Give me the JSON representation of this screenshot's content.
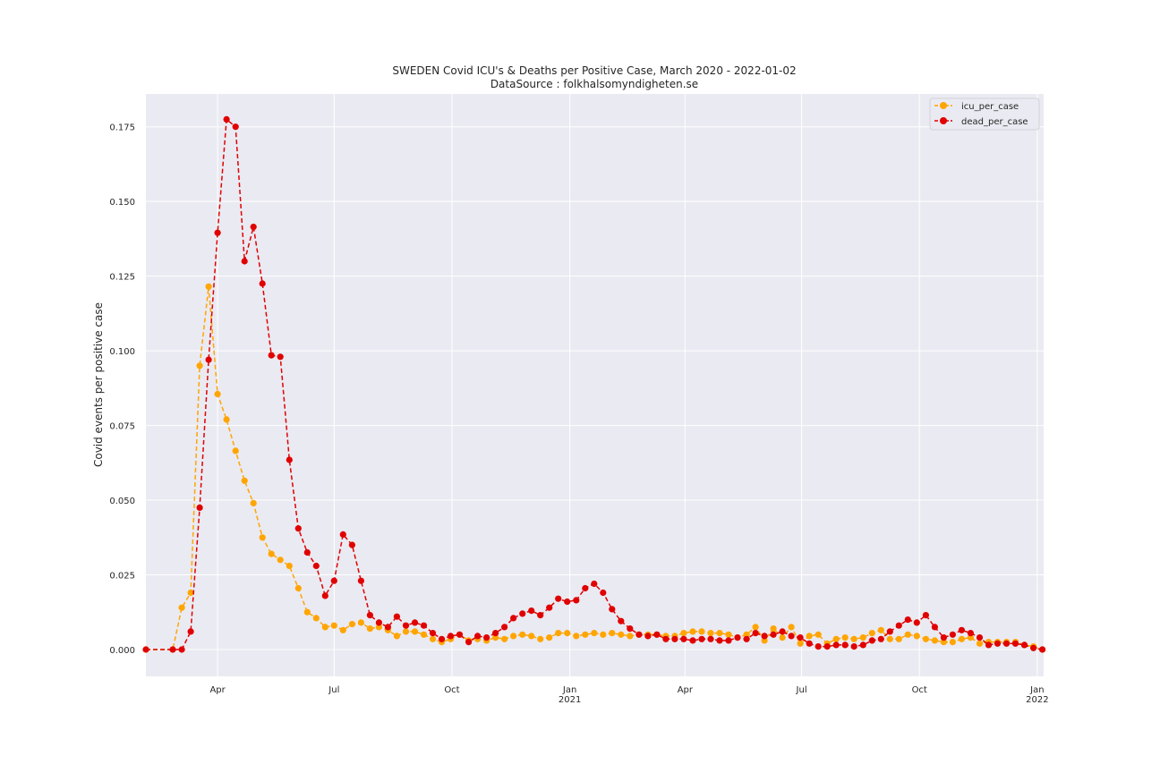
{
  "chart_data": {
    "type": "line",
    "title": "SWEDEN Covid ICU's & Deaths per Positive Case, March 2020 - 2022-01-02",
    "subtitle": "DataSource : folkhalsomyndigheten.se",
    "xlabel": "",
    "ylabel": "Covid events per positive case",
    "xlim": [
      "2020-02-05",
      "2022-01-06"
    ],
    "ylim": [
      -0.009,
      0.186
    ],
    "grid": true,
    "legend": "top-right",
    "x_ticks": [
      {
        "date": "2020-04-01",
        "label": "Apr",
        "sub": ""
      },
      {
        "date": "2020-07-01",
        "label": "Jul",
        "sub": ""
      },
      {
        "date": "2020-10-01",
        "label": "Oct",
        "sub": ""
      },
      {
        "date": "2021-01-01",
        "label": "Jan",
        "sub": "2021"
      },
      {
        "date": "2021-04-01",
        "label": "Apr",
        "sub": ""
      },
      {
        "date": "2021-07-01",
        "label": "Jul",
        "sub": ""
      },
      {
        "date": "2021-10-01",
        "label": "Oct",
        "sub": ""
      },
      {
        "date": "2022-01-01",
        "label": "Jan",
        "sub": "2022"
      }
    ],
    "y_ticks": [
      "0.000",
      "0.025",
      "0.050",
      "0.075",
      "0.100",
      "0.125",
      "0.150",
      "0.175"
    ],
    "series": [
      {
        "name": "icu_per_case",
        "color": "#ffa500",
        "values": [
          [
            "2020-02-05",
            0.0
          ],
          [
            "2020-02-26",
            0.0
          ],
          [
            "2020-03-04",
            0.014
          ],
          [
            "2020-03-11",
            0.019
          ],
          [
            "2020-03-18",
            0.095
          ],
          [
            "2020-03-25",
            0.1215
          ],
          [
            "2020-04-01",
            0.0855
          ],
          [
            "2020-04-08",
            0.077
          ],
          [
            "2020-04-15",
            0.0665
          ],
          [
            "2020-04-22",
            0.0565
          ],
          [
            "2020-04-29",
            0.049
          ],
          [
            "2020-05-06",
            0.0375
          ],
          [
            "2020-05-13",
            0.032
          ],
          [
            "2020-05-20",
            0.03
          ],
          [
            "2020-05-27",
            0.028
          ],
          [
            "2020-06-03",
            0.0205
          ],
          [
            "2020-06-10",
            0.0125
          ],
          [
            "2020-06-17",
            0.0105
          ],
          [
            "2020-06-24",
            0.0075
          ],
          [
            "2020-07-01",
            0.008
          ],
          [
            "2020-07-08",
            0.0065
          ],
          [
            "2020-07-15",
            0.0085
          ],
          [
            "2020-07-22",
            0.009
          ],
          [
            "2020-07-29",
            0.007
          ],
          [
            "2020-08-05",
            0.0075
          ],
          [
            "2020-08-12",
            0.0065
          ],
          [
            "2020-08-19",
            0.0045
          ],
          [
            "2020-08-26",
            0.006
          ],
          [
            "2020-09-02",
            0.006
          ],
          [
            "2020-09-09",
            0.005
          ],
          [
            "2020-09-16",
            0.0035
          ],
          [
            "2020-09-23",
            0.0025
          ],
          [
            "2020-09-30",
            0.0035
          ],
          [
            "2020-10-07",
            0.005
          ],
          [
            "2020-10-14",
            0.003
          ],
          [
            "2020-10-21",
            0.0035
          ],
          [
            "2020-10-28",
            0.003
          ],
          [
            "2020-11-04",
            0.004
          ],
          [
            "2020-11-11",
            0.0035
          ],
          [
            "2020-11-18",
            0.0045
          ],
          [
            "2020-11-25",
            0.005
          ],
          [
            "2020-12-02",
            0.0045
          ],
          [
            "2020-12-09",
            0.0035
          ],
          [
            "2020-12-16",
            0.004
          ],
          [
            "2020-12-23",
            0.0055
          ],
          [
            "2020-12-30",
            0.0055
          ],
          [
            "2021-01-06",
            0.0045
          ],
          [
            "2021-01-13",
            0.005
          ],
          [
            "2021-01-20",
            0.0055
          ],
          [
            "2021-01-27",
            0.005
          ],
          [
            "2021-02-03",
            0.0055
          ],
          [
            "2021-02-10",
            0.005
          ],
          [
            "2021-02-17",
            0.0045
          ],
          [
            "2021-02-24",
            0.005
          ],
          [
            "2021-03-03",
            0.005
          ],
          [
            "2021-03-10",
            0.005
          ],
          [
            "2021-03-17",
            0.0045
          ],
          [
            "2021-03-24",
            0.0045
          ],
          [
            "2021-03-31",
            0.0055
          ],
          [
            "2021-04-07",
            0.006
          ],
          [
            "2021-04-14",
            0.006
          ],
          [
            "2021-04-21",
            0.0055
          ],
          [
            "2021-04-28",
            0.0055
          ],
          [
            "2021-05-05",
            0.005
          ],
          [
            "2021-05-12",
            0.004
          ],
          [
            "2021-05-19",
            0.005
          ],
          [
            "2021-05-26",
            0.0075
          ],
          [
            "2021-06-02",
            0.003
          ],
          [
            "2021-06-09",
            0.007
          ],
          [
            "2021-06-16",
            0.004
          ],
          [
            "2021-06-23",
            0.0075
          ],
          [
            "2021-06-30",
            0.002
          ],
          [
            "2021-07-07",
            0.0045
          ],
          [
            "2021-07-14",
            0.005
          ],
          [
            "2021-07-21",
            0.002
          ],
          [
            "2021-07-28",
            0.0035
          ],
          [
            "2021-08-04",
            0.004
          ],
          [
            "2021-08-11",
            0.0035
          ],
          [
            "2021-08-18",
            0.004
          ],
          [
            "2021-08-25",
            0.0055
          ],
          [
            "2021-09-01",
            0.0065
          ],
          [
            "2021-09-08",
            0.0035
          ],
          [
            "2021-09-15",
            0.0035
          ],
          [
            "2021-09-22",
            0.005
          ],
          [
            "2021-09-29",
            0.0045
          ],
          [
            "2021-10-06",
            0.0035
          ],
          [
            "2021-10-13",
            0.003
          ],
          [
            "2021-10-20",
            0.0025
          ],
          [
            "2021-10-27",
            0.0025
          ],
          [
            "2021-11-03",
            0.0035
          ],
          [
            "2021-11-10",
            0.004
          ],
          [
            "2021-11-17",
            0.002
          ],
          [
            "2021-11-24",
            0.0025
          ],
          [
            "2021-12-01",
            0.0025
          ],
          [
            "2021-12-08",
            0.0025
          ],
          [
            "2021-12-15",
            0.0025
          ],
          [
            "2021-12-22",
            0.0015
          ],
          [
            "2021-12-29",
            0.001
          ],
          [
            "2022-01-05",
            0.0
          ]
        ]
      },
      {
        "name": "dead_per_case",
        "color": "#e00000",
        "values": [
          [
            "2020-02-05",
            0.0
          ],
          [
            "2020-02-26",
            0.0
          ],
          [
            "2020-03-04",
            0.0
          ],
          [
            "2020-03-11",
            0.006
          ],
          [
            "2020-03-18",
            0.0475
          ],
          [
            "2020-03-25",
            0.097
          ],
          [
            "2020-04-01",
            0.1395
          ],
          [
            "2020-04-08",
            0.1775
          ],
          [
            "2020-04-15",
            0.175
          ],
          [
            "2020-04-22",
            0.13
          ],
          [
            "2020-04-29",
            0.1415
          ],
          [
            "2020-05-06",
            0.1225
          ],
          [
            "2020-05-13",
            0.0985
          ],
          [
            "2020-05-20",
            0.098
          ],
          [
            "2020-05-27",
            0.0635
          ],
          [
            "2020-06-03",
            0.0405
          ],
          [
            "2020-06-10",
            0.0325
          ],
          [
            "2020-06-17",
            0.028
          ],
          [
            "2020-06-24",
            0.018
          ],
          [
            "2020-07-01",
            0.023
          ],
          [
            "2020-07-08",
            0.0385
          ],
          [
            "2020-07-15",
            0.035
          ],
          [
            "2020-07-22",
            0.023
          ],
          [
            "2020-07-29",
            0.0115
          ],
          [
            "2020-08-05",
            0.009
          ],
          [
            "2020-08-12",
            0.0075
          ],
          [
            "2020-08-19",
            0.011
          ],
          [
            "2020-08-26",
            0.008
          ],
          [
            "2020-09-02",
            0.009
          ],
          [
            "2020-09-09",
            0.008
          ],
          [
            "2020-09-16",
            0.0055
          ],
          [
            "2020-09-23",
            0.0035
          ],
          [
            "2020-09-30",
            0.0045
          ],
          [
            "2020-10-07",
            0.005
          ],
          [
            "2020-10-14",
            0.0025
          ],
          [
            "2020-10-21",
            0.0045
          ],
          [
            "2020-10-28",
            0.004
          ],
          [
            "2020-11-04",
            0.0055
          ],
          [
            "2020-11-11",
            0.0075
          ],
          [
            "2020-11-18",
            0.0105
          ],
          [
            "2020-11-25",
            0.012
          ],
          [
            "2020-12-02",
            0.013
          ],
          [
            "2020-12-09",
            0.0115
          ],
          [
            "2020-12-16",
            0.014
          ],
          [
            "2020-12-23",
            0.017
          ],
          [
            "2020-12-30",
            0.016
          ],
          [
            "2021-01-06",
            0.0165
          ],
          [
            "2021-01-13",
            0.0205
          ],
          [
            "2021-01-20",
            0.022
          ],
          [
            "2021-01-27",
            0.019
          ],
          [
            "2021-02-03",
            0.0135
          ],
          [
            "2021-02-10",
            0.0095
          ],
          [
            "2021-02-17",
            0.007
          ],
          [
            "2021-02-24",
            0.005
          ],
          [
            "2021-03-03",
            0.0045
          ],
          [
            "2021-03-10",
            0.005
          ],
          [
            "2021-03-17",
            0.0035
          ],
          [
            "2021-03-24",
            0.0035
          ],
          [
            "2021-03-31",
            0.0035
          ],
          [
            "2021-04-07",
            0.003
          ],
          [
            "2021-04-14",
            0.0035
          ],
          [
            "2021-04-21",
            0.0035
          ],
          [
            "2021-04-28",
            0.003
          ],
          [
            "2021-05-05",
            0.003
          ],
          [
            "2021-05-12",
            0.004
          ],
          [
            "2021-05-19",
            0.0035
          ],
          [
            "2021-05-26",
            0.0055
          ],
          [
            "2021-06-02",
            0.0045
          ],
          [
            "2021-06-09",
            0.005
          ],
          [
            "2021-06-16",
            0.006
          ],
          [
            "2021-06-23",
            0.0045
          ],
          [
            "2021-06-30",
            0.004
          ],
          [
            "2021-07-07",
            0.002
          ],
          [
            "2021-07-14",
            0.001
          ],
          [
            "2021-07-21",
            0.001
          ],
          [
            "2021-07-28",
            0.0015
          ],
          [
            "2021-08-04",
            0.0015
          ],
          [
            "2021-08-11",
            0.001
          ],
          [
            "2021-08-18",
            0.0015
          ],
          [
            "2021-08-25",
            0.003
          ],
          [
            "2021-09-01",
            0.0035
          ],
          [
            "2021-09-08",
            0.006
          ],
          [
            "2021-09-15",
            0.008
          ],
          [
            "2021-09-22",
            0.01
          ],
          [
            "2021-09-29",
            0.009
          ],
          [
            "2021-10-06",
            0.0115
          ],
          [
            "2021-10-13",
            0.0075
          ],
          [
            "2021-10-20",
            0.004
          ],
          [
            "2021-10-27",
            0.005
          ],
          [
            "2021-11-03",
            0.0065
          ],
          [
            "2021-11-10",
            0.0055
          ],
          [
            "2021-11-17",
            0.004
          ],
          [
            "2021-11-24",
            0.0015
          ],
          [
            "2021-12-01",
            0.002
          ],
          [
            "2021-12-08",
            0.002
          ],
          [
            "2021-12-15",
            0.002
          ],
          [
            "2021-12-22",
            0.0015
          ],
          [
            "2021-12-29",
            0.0005
          ],
          [
            "2022-01-05",
            0.0
          ]
        ]
      }
    ]
  }
}
